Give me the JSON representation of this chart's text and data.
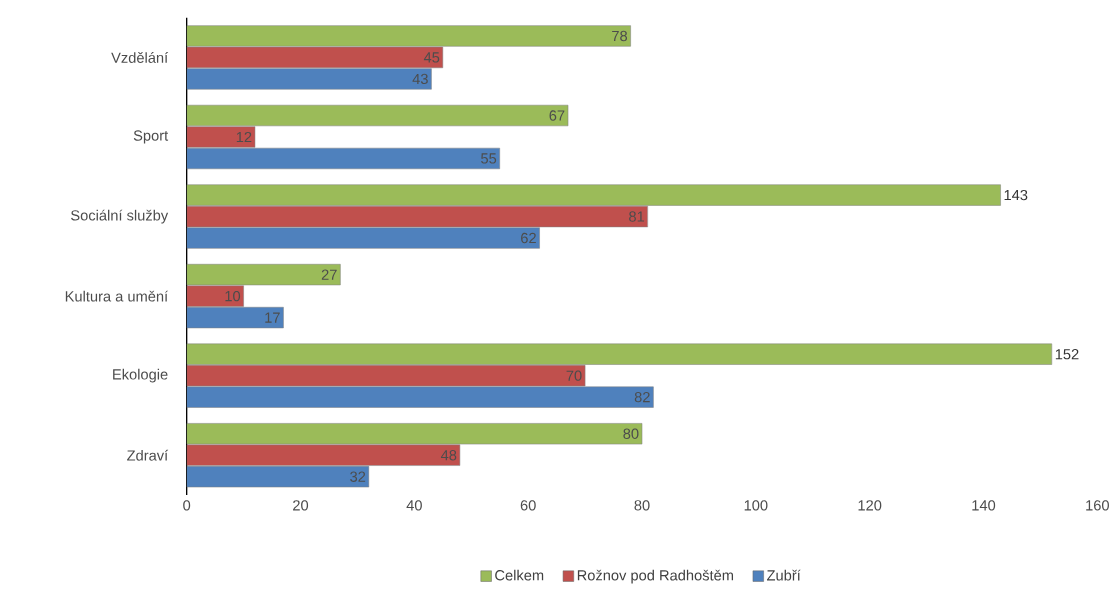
{
  "chart_data": {
    "type": "bar",
    "orientation": "horizontal",
    "categories": [
      "Vzdělání",
      "Sport",
      "Sociální služby",
      "Kultura a umění",
      "Ekologie",
      "Zdraví"
    ],
    "series": [
      {
        "name": "Celkem",
        "color": "#9bbb59",
        "values": [
          78,
          67,
          143,
          27,
          152,
          80
        ]
      },
      {
        "name": "Rožnov pod Radhoštěm",
        "color": "#c0504d",
        "values": [
          45,
          12,
          81,
          10,
          70,
          48
        ]
      },
      {
        "name": "Zubří",
        "color": "#4f81bd",
        "values": [
          43,
          55,
          62,
          17,
          82,
          32
        ]
      }
    ],
    "xlim": [
      0,
      160
    ],
    "xticks": [
      0,
      20,
      40,
      60,
      80,
      100,
      120,
      140,
      160
    ],
    "data_labels": true,
    "legend": "bottom",
    "grid": false
  }
}
